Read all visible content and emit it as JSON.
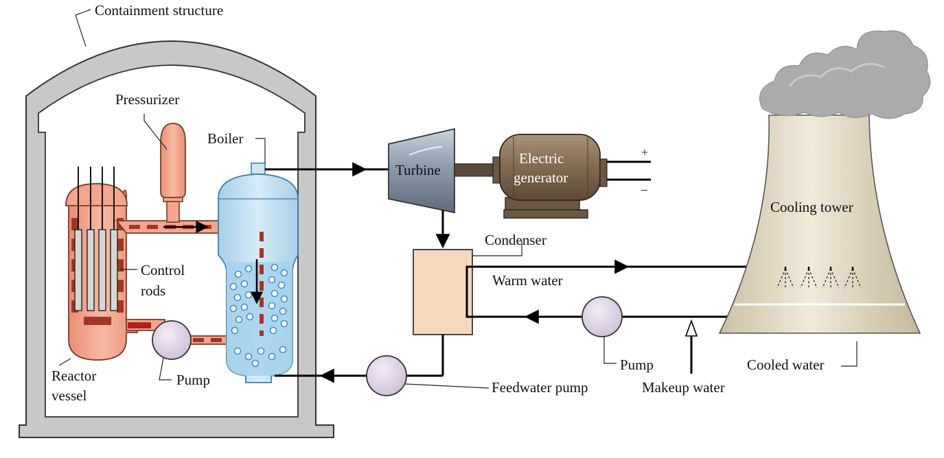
{
  "labels": {
    "containment": "Containment structure",
    "pressurizer": "Pressurizer",
    "boiler": "Boiler",
    "turbine": "Turbine",
    "generator_line1": "Electric",
    "generator_line2": "generator",
    "plus": "+",
    "minus": "–",
    "cooling_tower": "Cooling tower",
    "condenser": "Condenser",
    "warm_water": "Warm water",
    "control_rods_line1": "Control",
    "control_rods_line2": "rods",
    "reactor_line1": "Reactor",
    "reactor_line2": "vessel",
    "pump_primary": "Pump",
    "pump_cooling": "Pump",
    "cooled_water": "Cooled water",
    "feedwater_pump": "Feedwater pump",
    "makeup_water": "Makeup water"
  },
  "colors": {
    "containment": "#c8c8c8",
    "reactor": "#f0a088",
    "coolant_loop": "#a43525",
    "boiler_water": "#b8d9ee",
    "turbine": "#8a98a8",
    "generator": "#7a6650",
    "condenser": "#f4d9bf",
    "pump": "#e2d8ea",
    "tower": "#dfd4bd",
    "steam_cloud": "#a8a8a8"
  },
  "icons": {
    "flow_arrows": "arrow-right-icon",
    "steam": "cloud-icon",
    "spray": "spray-nozzle-icon"
  }
}
